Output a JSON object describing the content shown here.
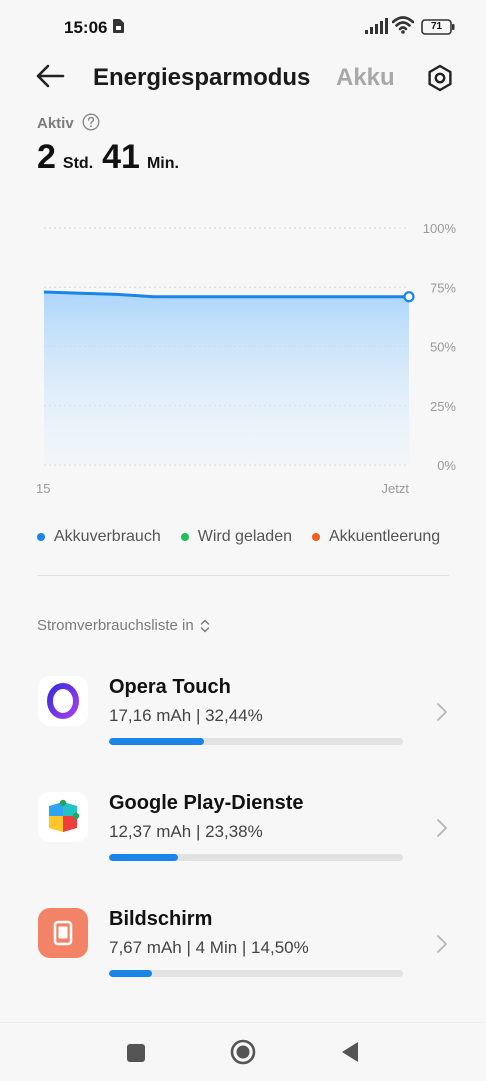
{
  "status_bar": {
    "time": "15:06",
    "battery_level": "71"
  },
  "header": {
    "title": "Energiesparmodus",
    "title_alt": "Akku"
  },
  "summary": {
    "active_label": "Aktiv",
    "hours": "2",
    "hours_unit": "Std.",
    "minutes": "41",
    "minutes_unit": "Min."
  },
  "chart_data": {
    "type": "area",
    "y_ticks": [
      "100%",
      "75%",
      "50%",
      "25%",
      "0%"
    ],
    "ylim": [
      0,
      100
    ],
    "x_ticks": [
      "15",
      "Jetzt"
    ],
    "grid": true,
    "series": [
      {
        "name": "Akkuverbrauch",
        "values": [
          73,
          72.5,
          72,
          71,
          71,
          71,
          71,
          71,
          71,
          71,
          71
        ]
      }
    ],
    "legend": [
      {
        "label": "Akkuverbrauch",
        "color": "#1a84e8"
      },
      {
        "label": "Wird geladen",
        "color": "#1fbf5a"
      },
      {
        "label": "Akkuentleerung",
        "color": "#f25f1c"
      }
    ]
  },
  "list": {
    "header": "Stromverbrauchsliste in",
    "apps": [
      {
        "name": "Opera Touch",
        "stats": "17,16 mAh | 32,44%",
        "percent": 32.44,
        "icon": "opera-icon"
      },
      {
        "name": "Google Play-Dienste",
        "stats": "12,37 mAh | 23,38%",
        "percent": 23.38,
        "icon": "google-play-services-icon"
      },
      {
        "name": "Bildschirm",
        "stats": "7,67 mAh | 4 Min  | 14,50%",
        "percent": 14.5,
        "icon": "screen-icon"
      }
    ]
  },
  "colors": {
    "accent": "#1a84e8",
    "screen_icon_bg": "#f28366"
  }
}
